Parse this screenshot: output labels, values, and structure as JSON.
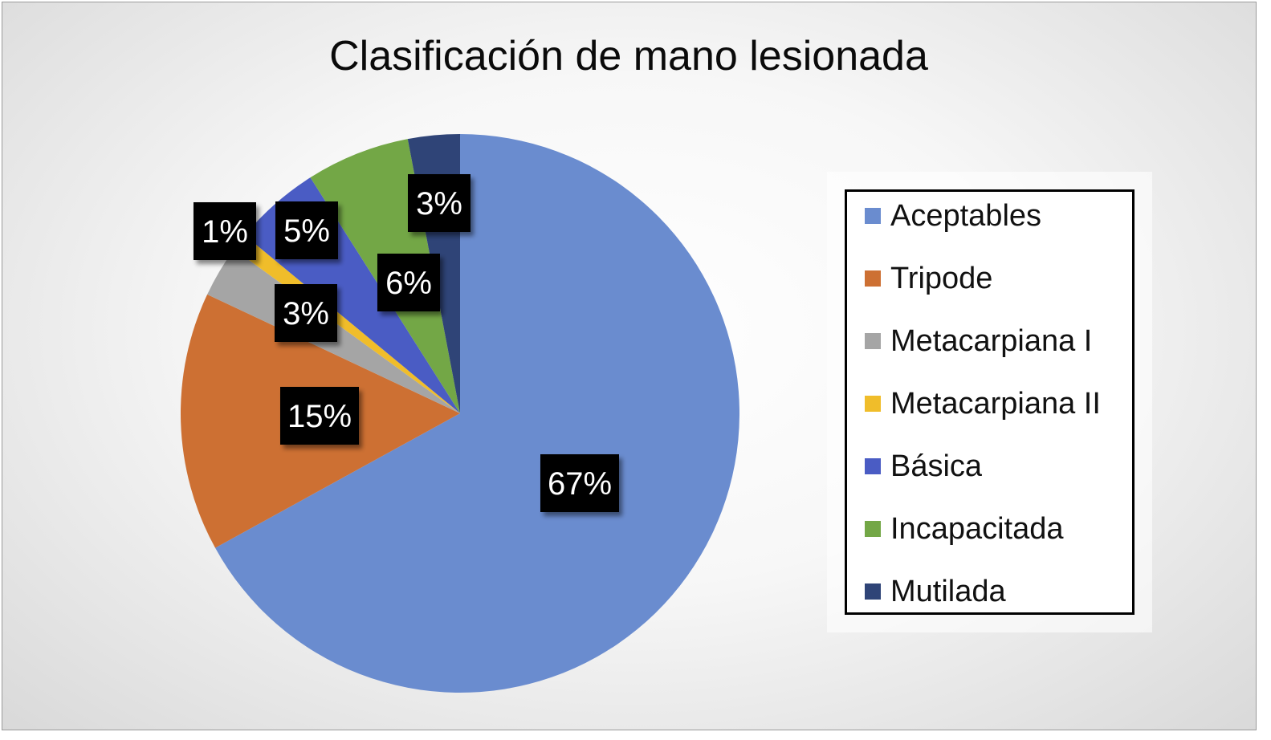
{
  "chart_data": {
    "type": "pie",
    "title": "Clasificación de mano lesionada",
    "start_angle_deg": 0,
    "direction": "clockwise",
    "legend_position": "right",
    "slices": [
      {
        "label": "Aceptables",
        "value": 67,
        "display": "67%",
        "color": "#6a8ccf"
      },
      {
        "label": "Tripode",
        "value": 15,
        "display": "15%",
        "color": "#cd7033"
      },
      {
        "label": "Metacarpiana I",
        "value": 3,
        "display": "3%",
        "color": "#a5a5a5"
      },
      {
        "label": "Metacarpiana II",
        "value": 1,
        "display": "1%",
        "color": "#f0bd2a"
      },
      {
        "label": "Básica",
        "value": 5,
        "display": "5%",
        "color": "#4a5cc4"
      },
      {
        "label": "Incapacitada",
        "value": 6,
        "display": "6%",
        "color": "#73a746"
      },
      {
        "label": "Mutilada",
        "value": 3,
        "display": "3%",
        "color": "#2f4477"
      }
    ]
  }
}
